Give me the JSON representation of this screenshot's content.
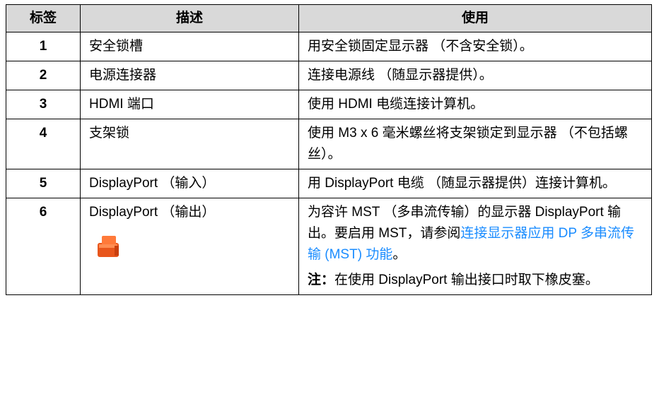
{
  "table": {
    "header": [
      "标签",
      "描述",
      "使用"
    ],
    "rows": [
      [
        "1",
        "安全锁槽",
        "用安全锁固定显示器 （不含安全锁）。"
      ],
      [
        "2",
        "电源连接器",
        "连接电源线 （随显示器提供）。"
      ],
      [
        "3",
        "HDMI 端口",
        "使用 HDMI 电缆连接计算机。"
      ],
      [
        "4",
        "支架锁",
        "使用 M3 x 6 毫米螺丝将支架锁定到显示器 （不包括螺丝）。"
      ],
      [
        "5",
        "DisplayPort （输入）",
        "用 DisplayPort 电缆 （随显示器提供）连接计算机。"
      ],
      [
        "6",
        "DisplayPort （输出）",
        {
          "text": "为容许 MST （多串流传输）的显示器 DisplayPort 输出。要启用 MST，请参阅",
          "link": "连接显示器应用 DP 多串流传输 (MST) 功能",
          "end": "。",
          "note_label": "注：",
          "note": "在使用 DisplayPort 输出接口时取下橡皮塞。"
        }
      ]
    ]
  }
}
